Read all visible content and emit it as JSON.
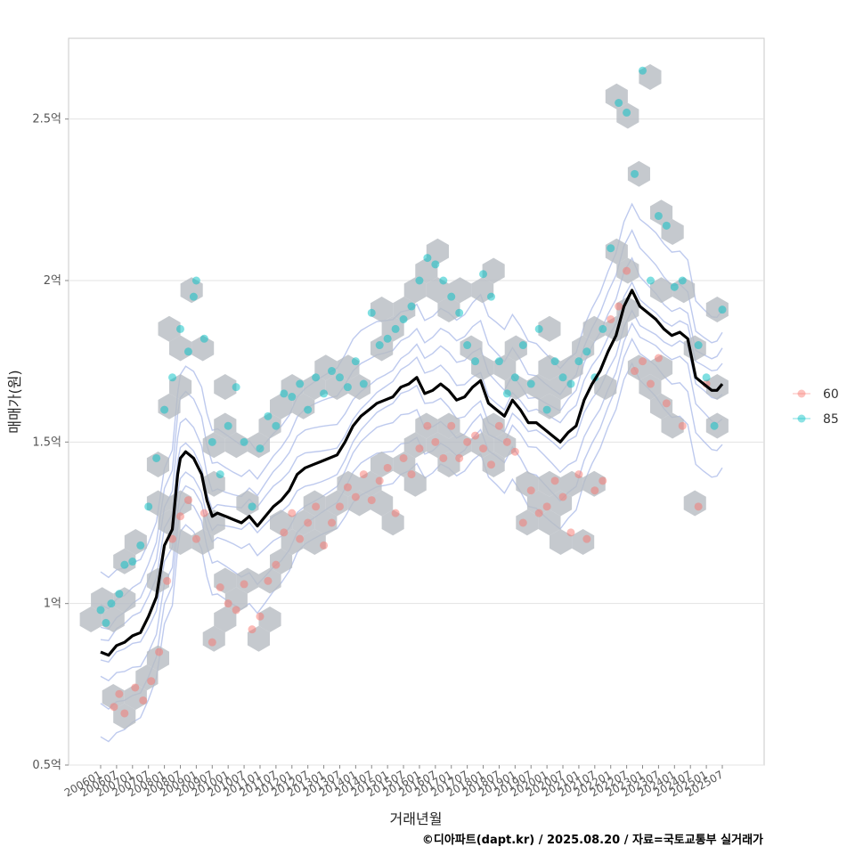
{
  "chart_data": {
    "type": "scatter",
    "xlabel": "거래년월",
    "ylabel": "매매가(원)",
    "caption": "©디아파트(dapt.kr) / 2025.08.20 / 자료=국토교통부 실거래가",
    "ylim": [
      0.5,
      2.75
    ],
    "xlim_months": [
      "2006-01",
      "2025-07"
    ],
    "y_ticks": [
      {
        "value": 0.5,
        "label": "0.5억"
      },
      {
        "value": 1.0,
        "label": "1억"
      },
      {
        "value": 1.5,
        "label": "1.5억"
      },
      {
        "value": 2.0,
        "label": "2억"
      },
      {
        "value": 2.5,
        "label": "2.5억"
      }
    ],
    "x_tick_labels": [
      "200601",
      "200607",
      "200701",
      "200707",
      "200801",
      "200807",
      "200901",
      "200907",
      "201001",
      "201007",
      "201101",
      "201107",
      "201201",
      "201207",
      "201301",
      "201307",
      "201401",
      "201407",
      "201501",
      "201507",
      "201601",
      "201607",
      "201701",
      "201707",
      "201801",
      "201807",
      "201901",
      "201907",
      "202001",
      "202007",
      "202101",
      "202107",
      "202201",
      "202207",
      "202301",
      "202307",
      "202401",
      "202407",
      "202501",
      "202507"
    ],
    "grid": true,
    "legend_placement": "right",
    "series": [
      {
        "name": "60",
        "color": "#F8766D",
        "points": [
          [
            "2006-06",
            0.68
          ],
          [
            "2006-08",
            0.72
          ],
          [
            "2006-10",
            0.66
          ],
          [
            "2007-02",
            0.74
          ],
          [
            "2007-05",
            0.7
          ],
          [
            "2007-08",
            0.76
          ],
          [
            "2007-11",
            0.85
          ],
          [
            "2008-02",
            1.07
          ],
          [
            "2008-04",
            1.2
          ],
          [
            "2008-07",
            1.27
          ],
          [
            "2008-10",
            1.32
          ],
          [
            "2009-01",
            1.2
          ],
          [
            "2009-04",
            1.28
          ],
          [
            "2009-07",
            0.88
          ],
          [
            "2009-10",
            1.05
          ],
          [
            "2010-01",
            1.0
          ],
          [
            "2010-04",
            0.98
          ],
          [
            "2010-07",
            1.06
          ],
          [
            "2010-10",
            0.92
          ],
          [
            "2011-01",
            0.96
          ],
          [
            "2011-04",
            1.07
          ],
          [
            "2011-07",
            1.12
          ],
          [
            "2011-10",
            1.22
          ],
          [
            "2012-01",
            1.28
          ],
          [
            "2012-04",
            1.2
          ],
          [
            "2012-07",
            1.25
          ],
          [
            "2012-10",
            1.3
          ],
          [
            "2013-01",
            1.18
          ],
          [
            "2013-04",
            1.25
          ],
          [
            "2013-07",
            1.3
          ],
          [
            "2013-10",
            1.36
          ],
          [
            "2014-01",
            1.33
          ],
          [
            "2014-04",
            1.4
          ],
          [
            "2014-07",
            1.32
          ],
          [
            "2014-10",
            1.38
          ],
          [
            "2015-01",
            1.42
          ],
          [
            "2015-04",
            1.28
          ],
          [
            "2015-07",
            1.45
          ],
          [
            "2015-10",
            1.4
          ],
          [
            "2016-01",
            1.48
          ],
          [
            "2016-04",
            1.55
          ],
          [
            "2016-07",
            1.5
          ],
          [
            "2016-10",
            1.45
          ],
          [
            "2017-01",
            1.55
          ],
          [
            "2017-04",
            1.45
          ],
          [
            "2017-07",
            1.5
          ],
          [
            "2017-10",
            1.52
          ],
          [
            "2018-01",
            1.48
          ],
          [
            "2018-04",
            1.43
          ],
          [
            "2018-07",
            1.55
          ],
          [
            "2018-10",
            1.5
          ],
          [
            "2019-01",
            1.47
          ],
          [
            "2019-04",
            1.25
          ],
          [
            "2019-07",
            1.35
          ],
          [
            "2019-10",
            1.28
          ],
          [
            "2020-01",
            1.3
          ],
          [
            "2020-04",
            1.38
          ],
          [
            "2020-07",
            1.33
          ],
          [
            "2020-10",
            1.22
          ],
          [
            "2021-01",
            1.4
          ],
          [
            "2021-04",
            1.2
          ],
          [
            "2021-07",
            1.35
          ],
          [
            "2021-10",
            1.38
          ],
          [
            "2022-01",
            1.88
          ],
          [
            "2022-04",
            1.92
          ],
          [
            "2022-07",
            2.03
          ],
          [
            "2022-10",
            1.72
          ],
          [
            "2023-01",
            1.75
          ],
          [
            "2023-04",
            1.68
          ],
          [
            "2023-07",
            1.76
          ],
          [
            "2023-10",
            1.62
          ],
          [
            "2024-04",
            1.55
          ],
          [
            "2024-10",
            1.3
          ],
          [
            "2025-01",
            1.68
          ]
        ]
      },
      {
        "name": "85",
        "color": "#00BFC4",
        "points": [
          [
            "2006-01",
            0.98
          ],
          [
            "2006-03",
            0.94
          ],
          [
            "2006-05",
            1.0
          ],
          [
            "2006-08",
            1.03
          ],
          [
            "2006-10",
            1.12
          ],
          [
            "2007-01",
            1.13
          ],
          [
            "2007-04",
            1.18
          ],
          [
            "2007-07",
            1.3
          ],
          [
            "2007-10",
            1.45
          ],
          [
            "2008-01",
            1.6
          ],
          [
            "2008-04",
            1.7
          ],
          [
            "2008-07",
            1.85
          ],
          [
            "2008-10",
            1.78
          ],
          [
            "2008-12",
            1.95
          ],
          [
            "2009-01",
            2.0
          ],
          [
            "2009-04",
            1.82
          ],
          [
            "2009-07",
            1.5
          ],
          [
            "2009-10",
            1.4
          ],
          [
            "2010-01",
            1.55
          ],
          [
            "2010-04",
            1.67
          ],
          [
            "2010-07",
            1.5
          ],
          [
            "2010-10",
            1.3
          ],
          [
            "2011-01",
            1.48
          ],
          [
            "2011-04",
            1.58
          ],
          [
            "2011-07",
            1.55
          ],
          [
            "2011-10",
            1.65
          ],
          [
            "2012-01",
            1.64
          ],
          [
            "2012-04",
            1.68
          ],
          [
            "2012-07",
            1.6
          ],
          [
            "2012-10",
            1.7
          ],
          [
            "2013-01",
            1.65
          ],
          [
            "2013-04",
            1.72
          ],
          [
            "2013-07",
            1.7
          ],
          [
            "2013-10",
            1.67
          ],
          [
            "2014-01",
            1.75
          ],
          [
            "2014-04",
            1.68
          ],
          [
            "2014-07",
            1.9
          ],
          [
            "2014-10",
            1.8
          ],
          [
            "2015-01",
            1.82
          ],
          [
            "2015-04",
            1.85
          ],
          [
            "2015-07",
            1.88
          ],
          [
            "2015-10",
            1.92
          ],
          [
            "2016-01",
            2.0
          ],
          [
            "2016-04",
            2.07
          ],
          [
            "2016-07",
            2.05
          ],
          [
            "2016-10",
            2.0
          ],
          [
            "2017-01",
            1.95
          ],
          [
            "2017-04",
            1.9
          ],
          [
            "2017-07",
            1.8
          ],
          [
            "2017-10",
            1.75
          ],
          [
            "2018-01",
            2.02
          ],
          [
            "2018-04",
            1.95
          ],
          [
            "2018-07",
            1.75
          ],
          [
            "2018-10",
            1.65
          ],
          [
            "2019-01",
            1.7
          ],
          [
            "2019-04",
            1.8
          ],
          [
            "2019-07",
            1.68
          ],
          [
            "2019-10",
            1.85
          ],
          [
            "2020-01",
            1.6
          ],
          [
            "2020-04",
            1.75
          ],
          [
            "2020-07",
            1.7
          ],
          [
            "2020-10",
            1.68
          ],
          [
            "2021-01",
            1.75
          ],
          [
            "2021-04",
            1.78
          ],
          [
            "2021-07",
            1.7
          ],
          [
            "2021-10",
            1.85
          ],
          [
            "2022-01",
            2.1
          ],
          [
            "2022-04",
            2.55
          ],
          [
            "2022-07",
            2.52
          ],
          [
            "2022-10",
            2.33
          ],
          [
            "2023-01",
            2.65
          ],
          [
            "2023-04",
            2.0
          ],
          [
            "2023-07",
            2.2
          ],
          [
            "2023-10",
            2.17
          ],
          [
            "2024-01",
            1.98
          ],
          [
            "2024-04",
            2.0
          ],
          [
            "2024-10",
            1.8
          ],
          [
            "2025-01",
            1.7
          ],
          [
            "2025-04",
            1.55
          ],
          [
            "2025-07",
            1.91
          ]
        ]
      }
    ],
    "trend_line": {
      "color": "#000000",
      "points": [
        [
          "2006-01",
          0.85
        ],
        [
          "2006-04",
          0.84
        ],
        [
          "2006-07",
          0.87
        ],
        [
          "2006-10",
          0.88
        ],
        [
          "2007-01",
          0.9
        ],
        [
          "2007-04",
          0.91
        ],
        [
          "2007-07",
          0.96
        ],
        [
          "2007-10",
          1.02
        ],
        [
          "2008-01",
          1.18
        ],
        [
          "2008-04",
          1.23
        ],
        [
          "2008-06",
          1.4
        ],
        [
          "2008-07",
          1.45
        ],
        [
          "2008-09",
          1.47
        ],
        [
          "2008-12",
          1.45
        ],
        [
          "2009-03",
          1.4
        ],
        [
          "2009-05",
          1.32
        ],
        [
          "2009-07",
          1.27
        ],
        [
          "2009-09",
          1.28
        ],
        [
          "2009-12",
          1.27
        ],
        [
          "2010-03",
          1.26
        ],
        [
          "2010-06",
          1.25
        ],
        [
          "2010-09",
          1.27
        ],
        [
          "2010-12",
          1.24
        ],
        [
          "2011-03",
          1.27
        ],
        [
          "2011-06",
          1.3
        ],
        [
          "2011-09",
          1.32
        ],
        [
          "2011-12",
          1.35
        ],
        [
          "2012-03",
          1.4
        ],
        [
          "2012-06",
          1.42
        ],
        [
          "2012-09",
          1.43
        ],
        [
          "2012-12",
          1.44
        ],
        [
          "2013-03",
          1.45
        ],
        [
          "2013-06",
          1.46
        ],
        [
          "2013-09",
          1.5
        ],
        [
          "2013-12",
          1.55
        ],
        [
          "2014-03",
          1.58
        ],
        [
          "2014-06",
          1.6
        ],
        [
          "2014-09",
          1.62
        ],
        [
          "2014-12",
          1.63
        ],
        [
          "2015-03",
          1.64
        ],
        [
          "2015-06",
          1.67
        ],
        [
          "2015-09",
          1.68
        ],
        [
          "2015-12",
          1.7
        ],
        [
          "2016-03",
          1.65
        ],
        [
          "2016-06",
          1.66
        ],
        [
          "2016-09",
          1.68
        ],
        [
          "2016-12",
          1.66
        ],
        [
          "2017-03",
          1.63
        ],
        [
          "2017-06",
          1.64
        ],
        [
          "2017-09",
          1.67
        ],
        [
          "2017-12",
          1.69
        ],
        [
          "2018-03",
          1.62
        ],
        [
          "2018-06",
          1.6
        ],
        [
          "2018-09",
          1.58
        ],
        [
          "2018-12",
          1.63
        ],
        [
          "2019-03",
          1.6
        ],
        [
          "2019-06",
          1.56
        ],
        [
          "2019-09",
          1.56
        ],
        [
          "2019-12",
          1.54
        ],
        [
          "2020-03",
          1.52
        ],
        [
          "2020-06",
          1.5
        ],
        [
          "2020-09",
          1.53
        ],
        [
          "2020-12",
          1.55
        ],
        [
          "2021-03",
          1.63
        ],
        [
          "2021-06",
          1.68
        ],
        [
          "2021-09",
          1.72
        ],
        [
          "2021-12",
          1.78
        ],
        [
          "2022-03",
          1.83
        ],
        [
          "2022-06",
          1.92
        ],
        [
          "2022-09",
          1.97
        ],
        [
          "2022-12",
          1.92
        ],
        [
          "2023-03",
          1.9
        ],
        [
          "2023-06",
          1.88
        ],
        [
          "2023-09",
          1.85
        ],
        [
          "2023-12",
          1.83
        ],
        [
          "2024-03",
          1.84
        ],
        [
          "2024-06",
          1.82
        ],
        [
          "2024-09",
          1.7
        ],
        [
          "2024-12",
          1.68
        ],
        [
          "2025-03",
          1.66
        ],
        [
          "2025-05",
          1.66
        ],
        [
          "2025-07",
          1.68
        ]
      ]
    },
    "hexbin_density": "grey hexagon bins behind points",
    "contour_color": "#A8B8E8"
  }
}
